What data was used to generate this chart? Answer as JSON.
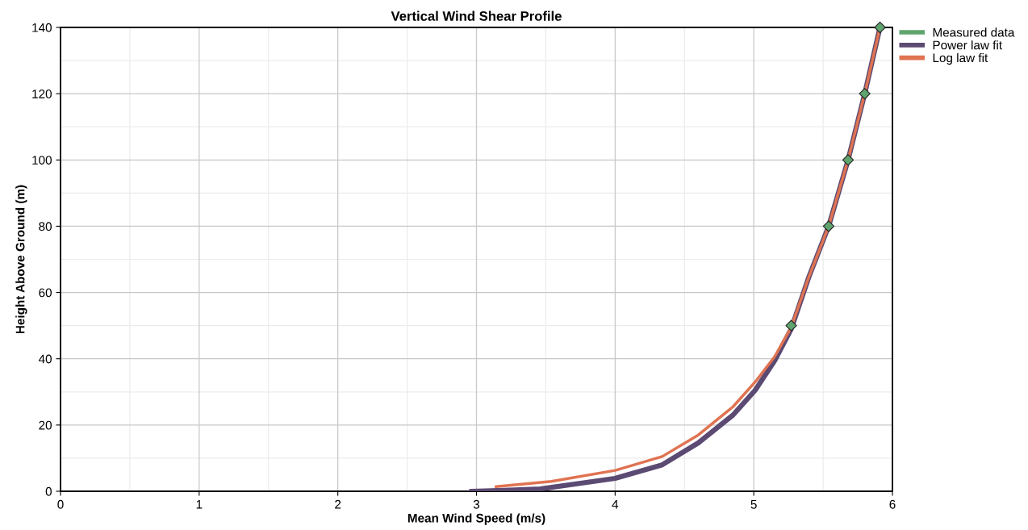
{
  "chart_data": {
    "type": "line",
    "title": "Vertical Wind Shear Profile",
    "xlabel": "Mean Wind Speed (m/s)",
    "ylabel": "Height Above Ground (m)",
    "xlim": [
      0,
      6
    ],
    "xticks": [
      0,
      1,
      2,
      3,
      4,
      5,
      6
    ],
    "ylim": [
      0,
      140
    ],
    "yticks": [
      0,
      20,
      40,
      60,
      80,
      100,
      120,
      140
    ],
    "grid": true,
    "legend": "top right",
    "series": [
      {
        "name": "Measured data",
        "type": "scatter",
        "color": "#5fa46e",
        "marker": "diamond",
        "x": [
          5.27,
          5.54,
          5.68,
          5.8,
          5.91
        ],
        "values": [
          50,
          80,
          100,
          120,
          140
        ]
      },
      {
        "name": "Power law fit",
        "color": "#5b4a72",
        "marker": "none",
        "x": [
          2.96,
          3.2,
          3.46,
          4.0,
          4.34,
          4.6,
          4.85,
          5.01,
          5.15,
          5.27,
          5.4,
          5.54,
          5.68,
          5.8,
          5.91
        ],
        "values": [
          0,
          0.3,
          0.7,
          3.9,
          8,
          14.6,
          23,
          30.5,
          39.4,
          49,
          65,
          80,
          100,
          120,
          140
        ]
      },
      {
        "name": "Log law fit",
        "color": "#e07352",
        "marker": "none",
        "x": [
          3.14,
          3.54,
          4.0,
          4.34,
          4.6,
          4.85,
          5.01,
          5.15,
          5.27,
          5.4,
          5.54,
          5.68,
          5.8,
          5.91
        ],
        "values": [
          1.4,
          3.0,
          6.3,
          10.5,
          17,
          25.5,
          33,
          40.6,
          49.5,
          65,
          80,
          100,
          120,
          140
        ]
      }
    ]
  }
}
